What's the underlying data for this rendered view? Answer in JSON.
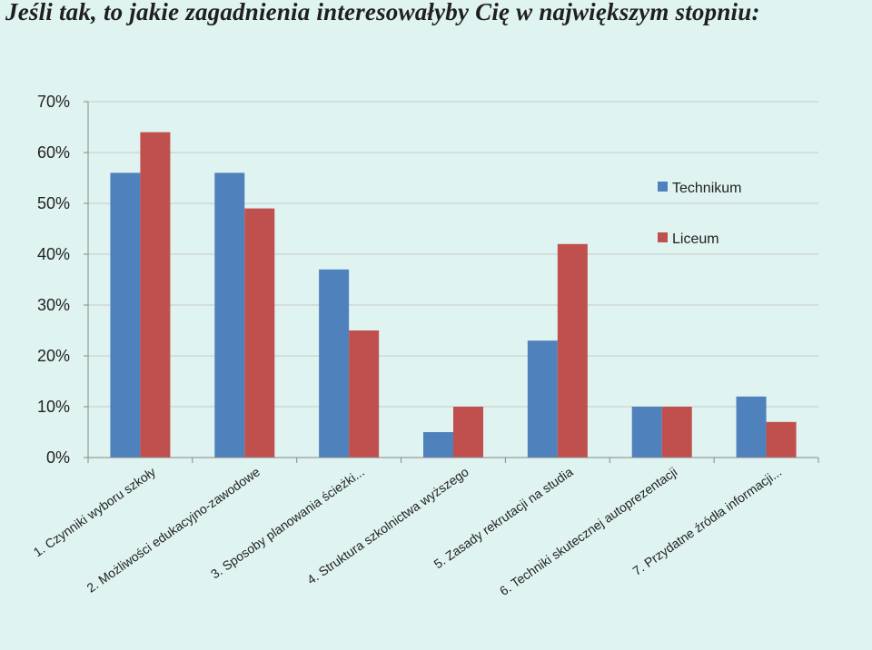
{
  "title": "Jeśli tak, to jakie zagadnienia interesowałyby Cię w największym stopniu:",
  "chart_data": {
    "type": "bar",
    "categories": [
      "1. Czynniki wyboru szkoły",
      "2. Możliwości edukacyjno-zawodowe",
      "3. Sposoby planowania ścieżki...",
      "4. Struktura szkolnictwa wyższego",
      "5. Zasady rekrutacji na studia",
      "6. Techniki skutecznej autoprezentacji",
      "7. Przydatne źródła informacji..."
    ],
    "series": [
      {
        "name": "Technikum",
        "color": "#4f81bd",
        "values": [
          56,
          56,
          37,
          5,
          23,
          10,
          12
        ]
      },
      {
        "name": "Liceum",
        "color": "#c0504d",
        "values": [
          64,
          49,
          25,
          10,
          42,
          10,
          7
        ]
      }
    ],
    "ylim": [
      0,
      70
    ],
    "yticks": [
      0,
      10,
      20,
      30,
      40,
      50,
      60,
      70
    ],
    "ytick_labels": [
      "0%",
      "10%",
      "20%",
      "30%",
      "40%",
      "50%",
      "60%",
      "70%"
    ],
    "grid": true,
    "legend_position": "right",
    "xlabel": "",
    "ylabel": ""
  }
}
